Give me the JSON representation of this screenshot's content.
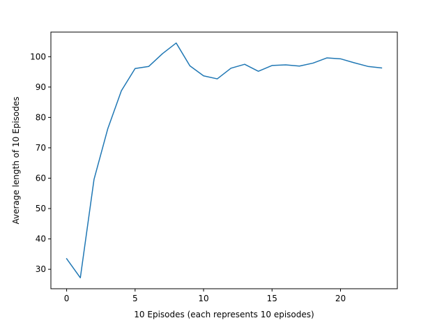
{
  "chart_data": {
    "type": "line",
    "title": "",
    "xlabel": "10 Episodes (each represents 10 episodes)",
    "ylabel": "Average length of 10 Episodes",
    "xlim": [
      -1.15,
      24.15
    ],
    "ylim": [
      23.6,
      108.1
    ],
    "xticks": [
      0,
      5,
      10,
      15,
      20
    ],
    "yticks": [
      30,
      40,
      50,
      60,
      70,
      80,
      90,
      100
    ],
    "grid": false,
    "legend": "none",
    "series": [
      {
        "color": "#1f77b4",
        "x": [
          0,
          1,
          2,
          3,
          4,
          5,
          6,
          7,
          8,
          9,
          10,
          11,
          12,
          13,
          14,
          15,
          16,
          17,
          18,
          19,
          20,
          21,
          22,
          23
        ],
        "y": [
          33.5,
          27.2,
          59.6,
          76.2,
          88.8,
          96.1,
          96.8,
          101.0,
          104.5,
          97.0,
          93.7,
          92.7,
          96.2,
          97.5,
          95.2,
          97.1,
          97.3,
          96.9,
          97.9,
          99.6,
          99.3,
          98.0,
          96.8,
          96.3
        ]
      }
    ]
  }
}
